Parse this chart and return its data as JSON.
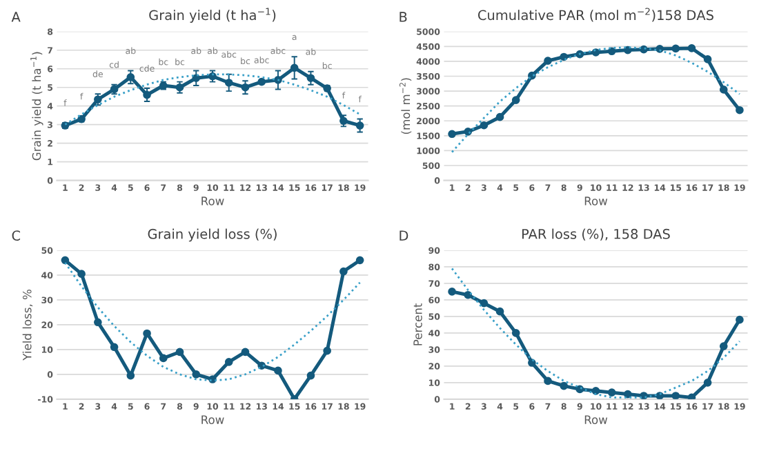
{
  "chart_data": [
    {
      "type": "line",
      "title": "Grain yield (t ha$^{−1}$)",
      "xlabel": "Row",
      "ylabel": "Grain yield (t ha$^{−1}$)",
      "categories": [
        "1",
        "2",
        "3",
        "4",
        "5",
        "6",
        "7",
        "8",
        "9",
        "10",
        "11",
        "12",
        "13",
        "14",
        "15",
        "16",
        "17",
        "18",
        "19"
      ],
      "series": [
        {
          "color": "#145a7d",
          "marker": "circle",
          "line_style": "solid",
          "values": [
            2.95,
            3.3,
            4.35,
            4.9,
            5.55,
            4.6,
            5.1,
            5.0,
            5.5,
            5.6,
            5.25,
            5.0,
            5.3,
            5.4,
            6.05,
            5.5,
            4.95,
            3.2,
            2.95
          ],
          "errors": [
            0.15,
            0.15,
            0.3,
            0.25,
            0.35,
            0.35,
            0.2,
            0.3,
            0.4,
            0.3,
            0.45,
            0.35,
            0.1,
            0.5,
            0.6,
            0.35,
            0.15,
            0.3,
            0.35
          ]
        },
        {
          "color": "#3aa0c8",
          "marker": "none",
          "line_style": "dotted",
          "values": [
            3.0,
            3.55,
            4.05,
            4.5,
            4.85,
            5.15,
            5.4,
            5.55,
            5.65,
            5.7,
            5.7,
            5.65,
            5.55,
            5.4,
            5.15,
            4.85,
            4.5,
            4.05,
            3.55
          ]
        }
      ],
      "ylim": [
        0,
        8
      ],
      "yticks": [
        0,
        1,
        2,
        3,
        4,
        5,
        6,
        7,
        8
      ],
      "grid": "y",
      "annotations": [
        "A",
        "f",
        "f",
        "de",
        "cd",
        "ab",
        "cde",
        "bc",
        "bc",
        "ab",
        "ab",
        "abc",
        "bc",
        "abc",
        "abc",
        "a",
        "ab",
        "bc",
        "f",
        "f"
      ]
    },
    {
      "type": "line",
      "title": "Cumulative PAR (mol m$^{−2}$)158 DAS",
      "xlabel": "Row",
      "ylabel": "(mol m$^{−2}$)",
      "categories": [
        "1",
        "2",
        "3",
        "4",
        "5",
        "6",
        "7",
        "8",
        "9",
        "10",
        "11",
        "12",
        "13",
        "14",
        "15",
        "16",
        "17",
        "18",
        "19"
      ],
      "series": [
        {
          "color": "#145a7d",
          "marker": "circle",
          "line_style": "solid",
          "values": [
            1560,
            1640,
            1850,
            2130,
            2700,
            3520,
            4020,
            4150,
            4240,
            4300,
            4340,
            4380,
            4400,
            4420,
            4430,
            4440,
            4070,
            3050,
            2360
          ]
        },
        {
          "color": "#3aa0c8",
          "marker": "none",
          "line_style": "dotted",
          "values": [
            950,
            1550,
            2100,
            2650,
            3100,
            3500,
            3800,
            4050,
            4250,
            4380,
            4450,
            4470,
            4440,
            4370,
            4200,
            3950,
            3650,
            3300,
            2900
          ]
        }
      ],
      "ylim": [
        0,
        5000
      ],
      "yticks": [
        0,
        500,
        1000,
        1500,
        2000,
        2500,
        3000,
        3500,
        4000,
        4500,
        5000
      ],
      "grid": "y",
      "annotations": [
        "B"
      ]
    },
    {
      "type": "line",
      "title": "Grain yield loss (%)",
      "xlabel": "Row",
      "ylabel": "Yield loss, %",
      "categories": [
        "1",
        "2",
        "3",
        "4",
        "5",
        "6",
        "7",
        "8",
        "9",
        "10",
        "11",
        "12",
        "13",
        "14",
        "15",
        "16",
        "17",
        "18",
        "19"
      ],
      "series": [
        {
          "color": "#145a7d",
          "marker": "circle",
          "line_style": "solid",
          "values": [
            46,
            40.5,
            21,
            11,
            -0.5,
            16.5,
            6.5,
            9,
            0,
            -2,
            5,
            9,
            3.5,
            1.5,
            -10,
            -0.5,
            9.5,
            41.5,
            46
          ]
        },
        {
          "color": "#3aa0c8",
          "marker": "none",
          "line_style": "dotted",
          "values": [
            45,
            35.5,
            27,
            19.5,
            13,
            7.5,
            3,
            0,
            -2,
            -2.5,
            -2,
            0,
            3,
            7,
            12,
            17.5,
            23.5,
            30,
            37
          ]
        }
      ],
      "ylim": [
        -10,
        50
      ],
      "yticks": [
        -10,
        0,
        10,
        20,
        30,
        40,
        50
      ],
      "grid": "y",
      "annotations": [
        "C"
      ]
    },
    {
      "type": "line",
      "title": "PAR loss (%), 158 DAS",
      "xlabel": "Row",
      "ylabel": "Percent",
      "categories": [
        "1",
        "2",
        "3",
        "4",
        "5",
        "6",
        "7",
        "8",
        "9",
        "10",
        "11",
        "12",
        "13",
        "14",
        "15",
        "16",
        "17",
        "18",
        "19"
      ],
      "series": [
        {
          "color": "#145a7d",
          "marker": "circle",
          "line_style": "solid",
          "values": [
            65,
            63,
            58,
            53,
            40,
            22,
            11,
            8,
            6,
            5,
            4,
            3,
            2,
            2,
            2,
            1,
            10,
            32,
            48
          ]
        },
        {
          "color": "#3aa0c8",
          "marker": "none",
          "line_style": "dotted",
          "values": [
            79,
            66,
            54,
            43,
            33,
            24,
            17,
            11,
            7,
            3,
            1,
            1,
            1,
            3,
            7,
            11,
            17,
            25,
            35
          ]
        }
      ],
      "ylim": [
        0,
        90
      ],
      "yticks": [
        0,
        10,
        20,
        30,
        40,
        50,
        60,
        70,
        80,
        90
      ],
      "grid": "y",
      "annotations": [
        "D"
      ]
    }
  ]
}
